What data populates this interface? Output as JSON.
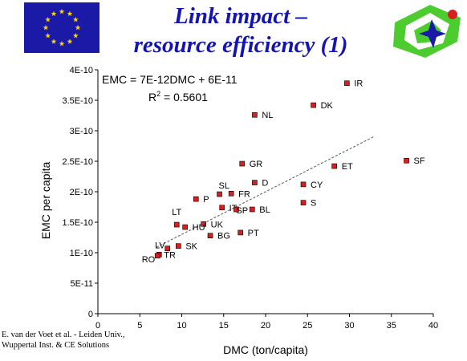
{
  "slide": {
    "title_line1": "Link impact –",
    "title_line2": "resource efficiency (1)",
    "credit_line1": "E. van der Voet et al. - Leiden Univ.,",
    "credit_line2": "Wuppertal Inst. & CE Solutions"
  },
  "colors": {
    "title": "#1414b4",
    "flag_blue": "#1a1aa6",
    "flag_star": "#ffd400",
    "marker": "#d42020",
    "logo_green": "#4ccc2e"
  },
  "chart_data": {
    "type": "scatter",
    "title": "",
    "xlabel": "DMC (ton/capita)",
    "ylabel": "EMC per capita",
    "xlim": [
      0,
      40
    ],
    "ylim": [
      0,
      4e-10
    ],
    "x_ticks": [
      0,
      5,
      10,
      15,
      20,
      25,
      30,
      35,
      40
    ],
    "x_tick_labels": [
      "0",
      "5",
      "10",
      "15",
      "20",
      "25",
      "30",
      "35",
      "40"
    ],
    "y_ticks": [
      0,
      5e-11,
      1e-10,
      1.5e-10,
      2e-10,
      2.5e-10,
      3e-10,
      3.5e-10,
      4e-10
    ],
    "y_tick_labels": [
      "0",
      "5E-11",
      "1E-10",
      "1.5E-10",
      "2E-10",
      "2.5E-10",
      "3E-10",
      "3.5E-10",
      "4E-10"
    ],
    "grid": false,
    "equation": "EMC = 7E-12DMC + 6E-11",
    "r_squared_prefix": "R",
    "r_squared_exp": "2",
    "r_squared_value": " = 0.5601",
    "trendline": {
      "slope": 7e-12,
      "intercept": 6e-11,
      "x_range": [
        7,
        33
      ],
      "style": "dashed"
    },
    "points": [
      {
        "label": "IR",
        "x": 29.7,
        "y": 3.78e-10
      },
      {
        "label": "DK",
        "x": 25.7,
        "y": 3.42e-10
      },
      {
        "label": "NL",
        "x": 18.7,
        "y": 3.26e-10
      },
      {
        "label": "SF",
        "x": 36.8,
        "y": 2.51e-10
      },
      {
        "label": "GR",
        "x": 17.2,
        "y": 2.46e-10
      },
      {
        "label": "ET",
        "x": 28.2,
        "y": 2.42e-10
      },
      {
        "label": "D",
        "x": 18.7,
        "y": 2.15e-10
      },
      {
        "label": "CY",
        "x": 24.5,
        "y": 2.12e-10
      },
      {
        "label": "SL",
        "x": 14.5,
        "y": 1.96e-10
      },
      {
        "label": "FR",
        "x": 15.9,
        "y": 1.97e-10
      },
      {
        "label": "P",
        "x": 11.7,
        "y": 1.88e-10
      },
      {
        "label": "S",
        "x": 24.5,
        "y": 1.82e-10
      },
      {
        "label": "IT",
        "x": 14.8,
        "y": 1.74e-10
      },
      {
        "label": "SP",
        "x": 16.5,
        "y": 1.71e-10
      },
      {
        "label": "BL",
        "x": 18.4,
        "y": 1.71e-10
      },
      {
        "label": "LT",
        "x": 9.4,
        "y": 1.46e-10
      },
      {
        "label": "UK",
        "x": 12.6,
        "y": 1.47e-10
      },
      {
        "label": "HU",
        "x": 10.4,
        "y": 1.42e-10
      },
      {
        "label": "PT",
        "x": 17.0,
        "y": 1.33e-10
      },
      {
        "label": "BG",
        "x": 13.4,
        "y": 1.28e-10
      },
      {
        "label": "SK",
        "x": 9.6,
        "y": 1.11e-10
      },
      {
        "label": "LV",
        "x": 8.3,
        "y": 1.07e-10
      },
      {
        "label": "TR",
        "x": 7.3,
        "y": 9.7e-11
      },
      {
        "label": "RO",
        "x": 7.1,
        "y": 9.5e-11
      }
    ]
  }
}
